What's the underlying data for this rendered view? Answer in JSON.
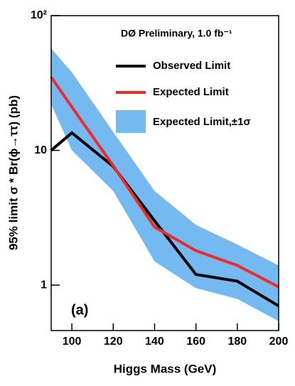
{
  "chart_data": {
    "type": "line",
    "title": "DØ Preliminary, 1.0 fb⁻¹",
    "x_label": "Higgs Mass (GeV)",
    "y_label": "95% limit σ * Br(ϕ→ττ) (pb)",
    "annotation": "(a)",
    "x": [
      90,
      100,
      120,
      140,
      160,
      180,
      200
    ],
    "xlim": [
      90,
      200
    ],
    "xticks": [
      100,
      120,
      140,
      160,
      180,
      200
    ],
    "ylim": [
      0.46,
      100
    ],
    "yticks": [
      1,
      10,
      {
        "value": 100,
        "label": "10²"
      }
    ],
    "log_y": true,
    "band": {
      "name": "Expected Limit,±1σ",
      "color": "#74b9ef",
      "upper": [
        57,
        38,
        13.7,
        5.0,
        2.8,
        2.0,
        1.4
      ],
      "lower": [
        22,
        10,
        5.0,
        1.5,
        0.95,
        0.79,
        0.54
      ]
    },
    "series": [
      {
        "name": "Observed Limit",
        "color": "#000000",
        "values": [
          10,
          13.5,
          7.6,
          3.0,
          1.2,
          1.07,
          0.7
        ]
      },
      {
        "name": "Expected Limit",
        "color": "#ee2a2a",
        "values": [
          35,
          21,
          7.7,
          2.7,
          1.8,
          1.4,
          0.97
        ]
      }
    ]
  }
}
